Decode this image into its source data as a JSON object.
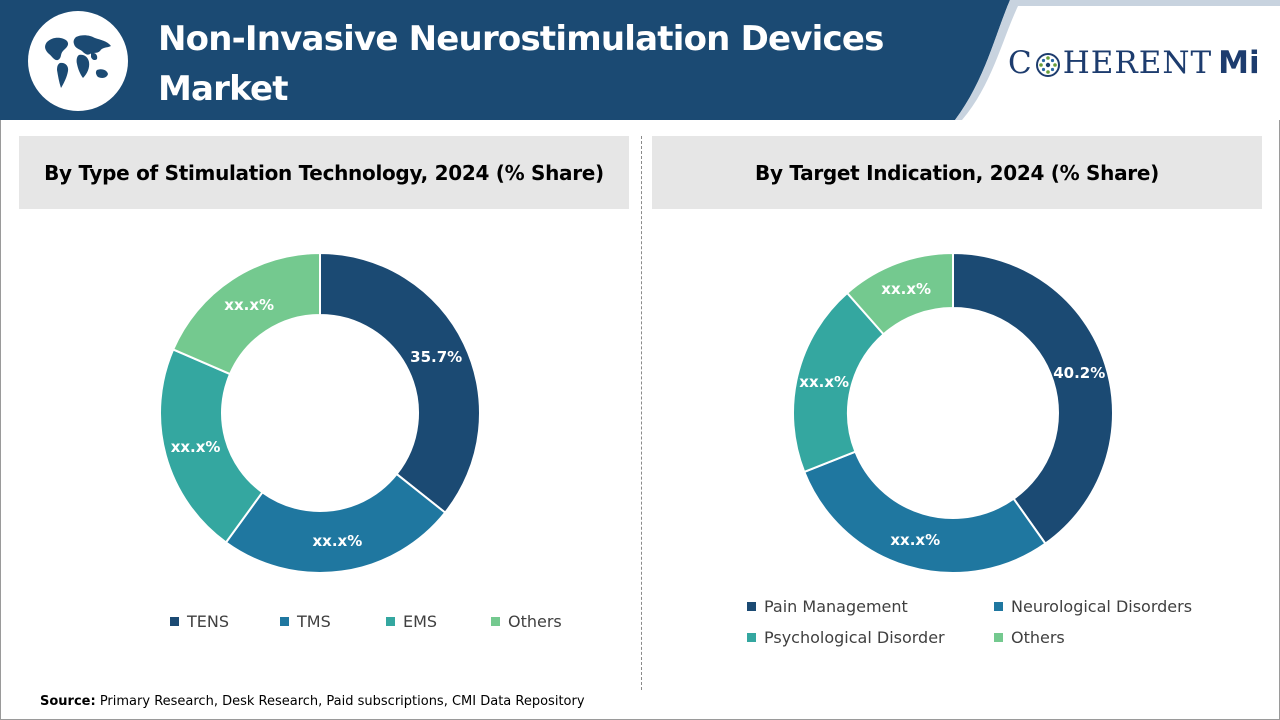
{
  "header": {
    "title_line1": "Non-Invasive Neurostimulation Devices",
    "title_line2": "Market",
    "logo_part1": "C",
    "logo_part2": "HERENT",
    "logo_part3": "Mi",
    "colors": {
      "band": "#1b4a73",
      "white": "#ffffff"
    }
  },
  "chart_data": [
    {
      "type": "pie",
      "title": "By Type of Stimulation Technology, 2024 (% Share)",
      "categories": [
        "TENS",
        "TMS",
        "EMS",
        "Others"
      ],
      "values": [
        35.7,
        24.3,
        21.5,
        18.5
      ],
      "labels": [
        "35.7%",
        "xx.x%",
        "xx.x%",
        "xx.x%"
      ],
      "colors": [
        "#1b4a73",
        "#1f77a0",
        "#34a7a0",
        "#74c98f"
      ],
      "legend_position": "bottom"
    },
    {
      "type": "pie",
      "title": "By Target Indication, 2024 (% Share)",
      "categories": [
        "Pain Management",
        "Neurological Disorders",
        "Psychological Disorder",
        "Others"
      ],
      "values": [
        40.2,
        28.8,
        19.5,
        11.5
      ],
      "labels": [
        "40.2%",
        "xx.x%",
        "xx.x%",
        "xx.x%"
      ],
      "colors": [
        "#1b4a73",
        "#1f77a0",
        "#34a7a0",
        "#74c98f"
      ],
      "legend_position": "bottom"
    }
  ],
  "source": {
    "label": "Source:",
    "text": " Primary Research, Desk Research, Paid subscriptions, CMI Data Repository"
  }
}
